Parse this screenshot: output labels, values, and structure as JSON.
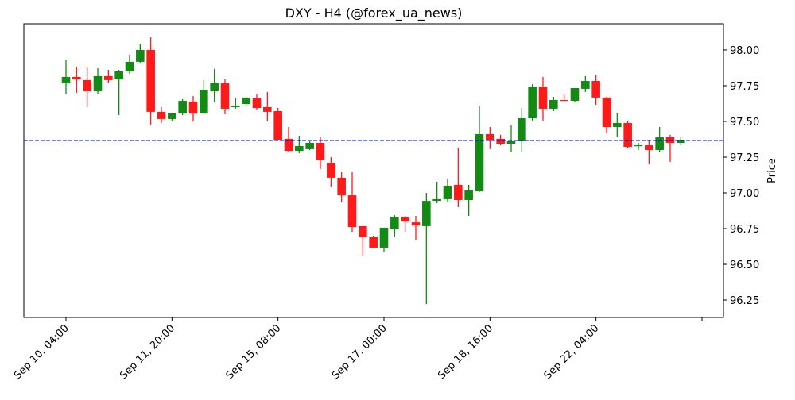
{
  "chart_data": {
    "type": "candlestick",
    "title": "DXY - H4 (@forex_ua_news)",
    "xlabel": "",
    "ylabel": "Price",
    "ylim": [
      96.128,
      98.183
    ],
    "y_ticks": [
      "96.25",
      "96.50",
      "96.75",
      "97.00",
      "97.25",
      "97.50",
      "97.75",
      "98.00"
    ],
    "x_tick_labels": [
      "Sep 10, 04:00",
      "Sep 11, 20:00",
      "Sep 15, 08:00",
      "Sep 17, 00:00",
      "Sep 18, 16:00",
      "Sep 22, 04:00",
      ""
    ],
    "x_tick_every": 10,
    "reference_line": 97.367,
    "colors": {
      "up": "#138a13",
      "down": "#ff1a1a",
      "line": "#0000aa"
    },
    "candles": [
      [
        97.767,
        97.933,
        97.694,
        97.811
      ],
      [
        97.811,
        97.883,
        97.7,
        97.794
      ],
      [
        97.789,
        97.883,
        97.6,
        97.711
      ],
      [
        97.711,
        97.872,
        97.694,
        97.817
      ],
      [
        97.817,
        97.861,
        97.772,
        97.789
      ],
      [
        97.794,
        97.861,
        97.544,
        97.85
      ],
      [
        97.85,
        97.967,
        97.833,
        97.917
      ],
      [
        97.917,
        98.039,
        97.906,
        98.0
      ],
      [
        98.0,
        98.089,
        97.478,
        97.567
      ],
      [
        97.567,
        97.6,
        97.489,
        97.517
      ],
      [
        97.517,
        97.556,
        97.506,
        97.556
      ],
      [
        97.556,
        97.656,
        97.544,
        97.644
      ],
      [
        97.639,
        97.678,
        97.5,
        97.556
      ],
      [
        97.556,
        97.789,
        97.556,
        97.717
      ],
      [
        97.711,
        97.867,
        97.639,
        97.772
      ],
      [
        97.767,
        97.794,
        97.55,
        97.589
      ],
      [
        97.6,
        97.661,
        97.589,
        97.611
      ],
      [
        97.622,
        97.672,
        97.606,
        97.667
      ],
      [
        97.661,
        97.689,
        97.583,
        97.594
      ],
      [
        97.6,
        97.706,
        97.5,
        97.567
      ],
      [
        97.572,
        97.594,
        97.367,
        97.372
      ],
      [
        97.378,
        97.461,
        97.289,
        97.294
      ],
      [
        97.294,
        97.4,
        97.278,
        97.328
      ],
      [
        97.306,
        97.361,
        97.3,
        97.35
      ],
      [
        97.35,
        97.389,
        97.167,
        97.228
      ],
      [
        97.211,
        97.25,
        97.044,
        97.106
      ],
      [
        97.106,
        97.144,
        96.933,
        96.983
      ],
      [
        96.983,
        97.144,
        96.728,
        96.761
      ],
      [
        96.767,
        96.767,
        96.561,
        96.694
      ],
      [
        96.694,
        96.7,
        96.611,
        96.617
      ],
      [
        96.617,
        96.756,
        96.589,
        96.756
      ],
      [
        96.75,
        96.844,
        96.694,
        96.833
      ],
      [
        96.833,
        96.839,
        96.728,
        96.8
      ],
      [
        96.794,
        96.839,
        96.672,
        96.772
      ],
      [
        96.767,
        97.0,
        96.222,
        96.944
      ],
      [
        96.944,
        97.078,
        96.928,
        96.956
      ],
      [
        96.956,
        97.1,
        96.939,
        97.05
      ],
      [
        97.056,
        97.317,
        96.9,
        96.95
      ],
      [
        96.95,
        97.056,
        96.839,
        97.017
      ],
      [
        97.011,
        97.606,
        97.006,
        97.411
      ],
      [
        97.411,
        97.461,
        97.306,
        97.372
      ],
      [
        97.378,
        97.406,
        97.333,
        97.344
      ],
      [
        97.344,
        97.472,
        97.283,
        97.361
      ],
      [
        97.361,
        97.594,
        97.283,
        97.522
      ],
      [
        97.522,
        97.761,
        97.506,
        97.744
      ],
      [
        97.744,
        97.811,
        97.506,
        97.589
      ],
      [
        97.589,
        97.672,
        97.572,
        97.65
      ],
      [
        97.65,
        97.694,
        97.644,
        97.644
      ],
      [
        97.644,
        97.733,
        97.633,
        97.733
      ],
      [
        97.728,
        97.817,
        97.706,
        97.783
      ],
      [
        97.783,
        97.822,
        97.617,
        97.667
      ],
      [
        97.667,
        97.672,
        97.417,
        97.461
      ],
      [
        97.461,
        97.561,
        97.394,
        97.489
      ],
      [
        97.489,
        97.506,
        97.311,
        97.322
      ],
      [
        97.328,
        97.35,
        97.3,
        97.333
      ],
      [
        97.333,
        97.367,
        97.2,
        97.3
      ],
      [
        97.3,
        97.461,
        97.289,
        97.389
      ],
      [
        97.389,
        97.406,
        97.217,
        97.35
      ],
      [
        97.35,
        97.389,
        97.333,
        97.367
      ]
    ]
  }
}
